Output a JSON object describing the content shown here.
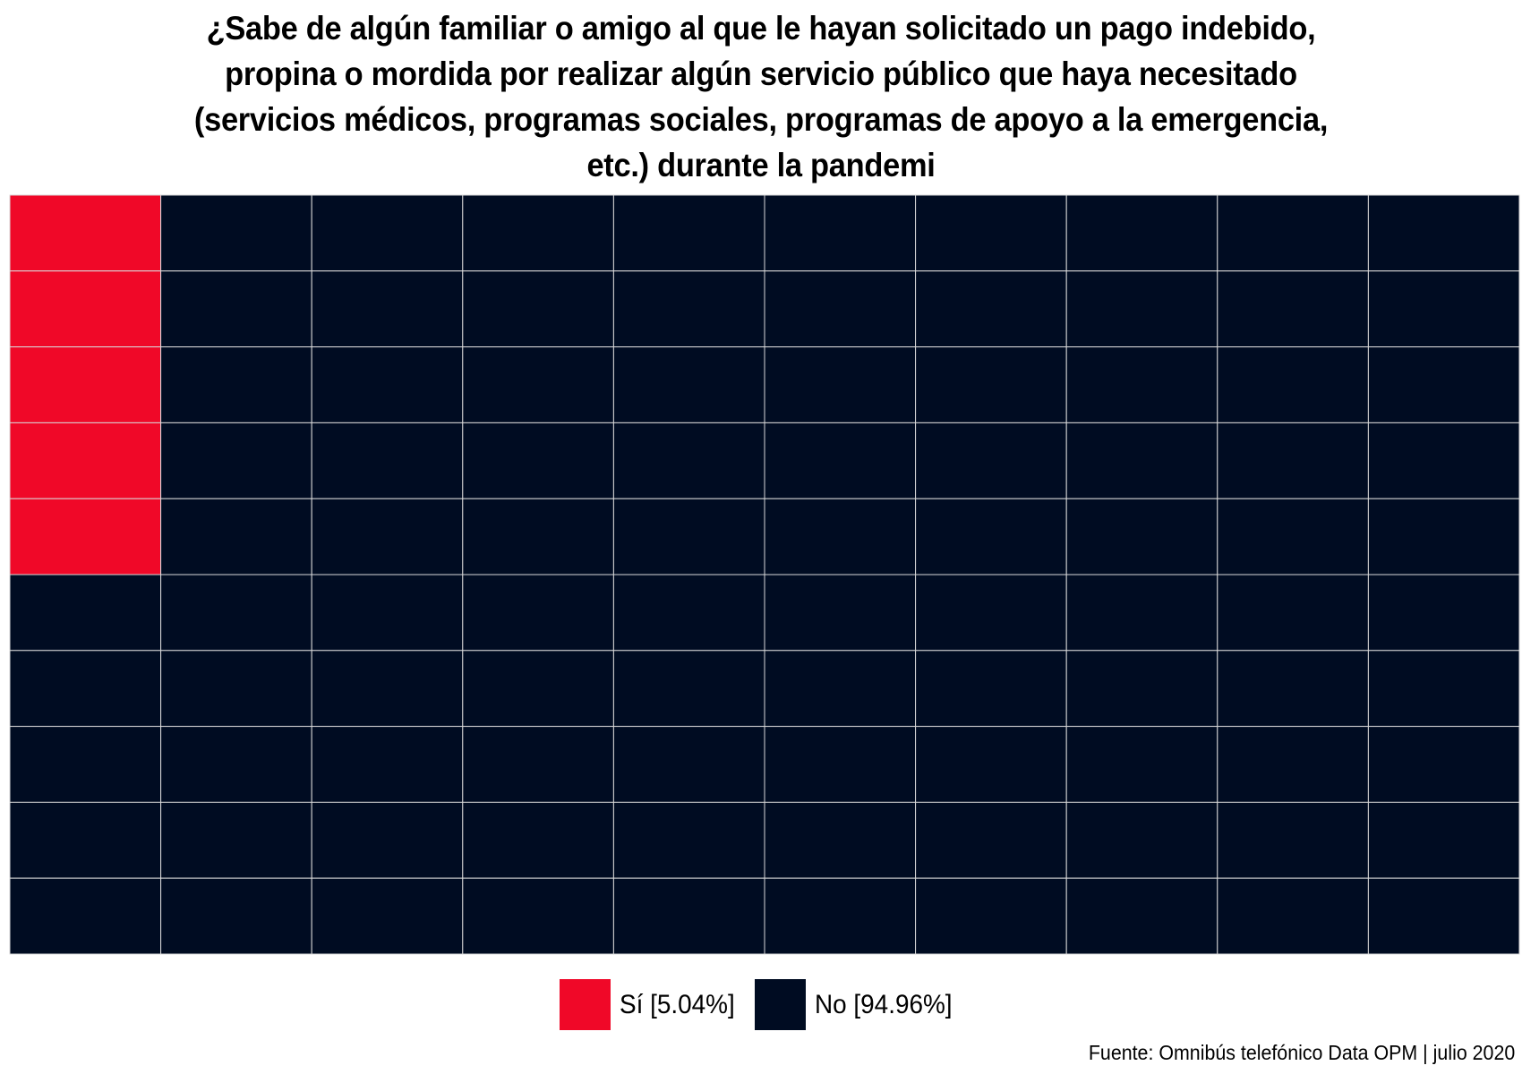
{
  "chart_data": {
    "type": "waffle",
    "title_lines": [
      "¿Sabe de algún familiar o amigo al que le hayan solicitado un pago indebido,",
      "propina o mordida por realizar algún servicio público que haya necesitado",
      "(servicios médicos, programas sociales, programas de apoyo a la emergencia,",
      "etc.) durante la pandemi"
    ],
    "grid": {
      "rows": 10,
      "columns": 10,
      "fill_order": "column-wise from top-left"
    },
    "categories": [
      {
        "label": "Sí [5.04%]",
        "value": 5.04,
        "squares": 5,
        "color": "#F00828"
      },
      {
        "label": "No [94.96%]",
        "value": 94.96,
        "squares": 95,
        "color": "#000C22"
      }
    ],
    "legend_position": "bottom",
    "caption": "Fuente: Omnibús telefónico Data OPM | julio 2020"
  }
}
